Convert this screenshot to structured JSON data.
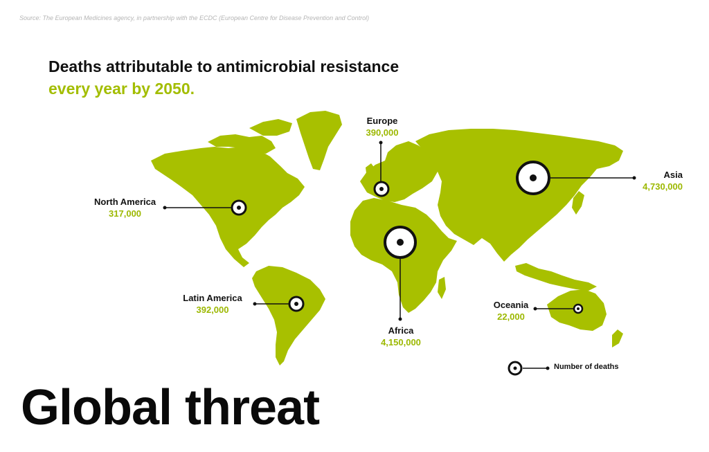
{
  "source": "Source: The European Medicines agency, in partnership with the ECDC (European Centre for Disease Prevention and Control)",
  "title": {
    "line1": "Deaths attributable to antimicrobial resistance",
    "line2": "every year by 2050."
  },
  "headline": "Global threat",
  "colors": {
    "land": "#a8c000",
    "accent": "#9cb800",
    "marker": "#111111"
  },
  "regions": [
    {
      "id": "north-america",
      "name": "North America",
      "value": "317,000",
      "deaths": 317000
    },
    {
      "id": "europe",
      "name": "Europe",
      "value": "390,000",
      "deaths": 390000
    },
    {
      "id": "asia",
      "name": "Asia",
      "value": "4,730,000",
      "deaths": 4730000
    },
    {
      "id": "latin-america",
      "name": "Latin America",
      "value": "392,000",
      "deaths": 392000
    },
    {
      "id": "africa",
      "name": "Africa",
      "value": "4,150,000",
      "deaths": 4150000
    },
    {
      "id": "oceania",
      "name": "Oceania",
      "value": "22,000",
      "deaths": 22000
    }
  ],
  "legend": {
    "label": "Number of deaths",
    "icon": "circle-marker-icon"
  }
}
